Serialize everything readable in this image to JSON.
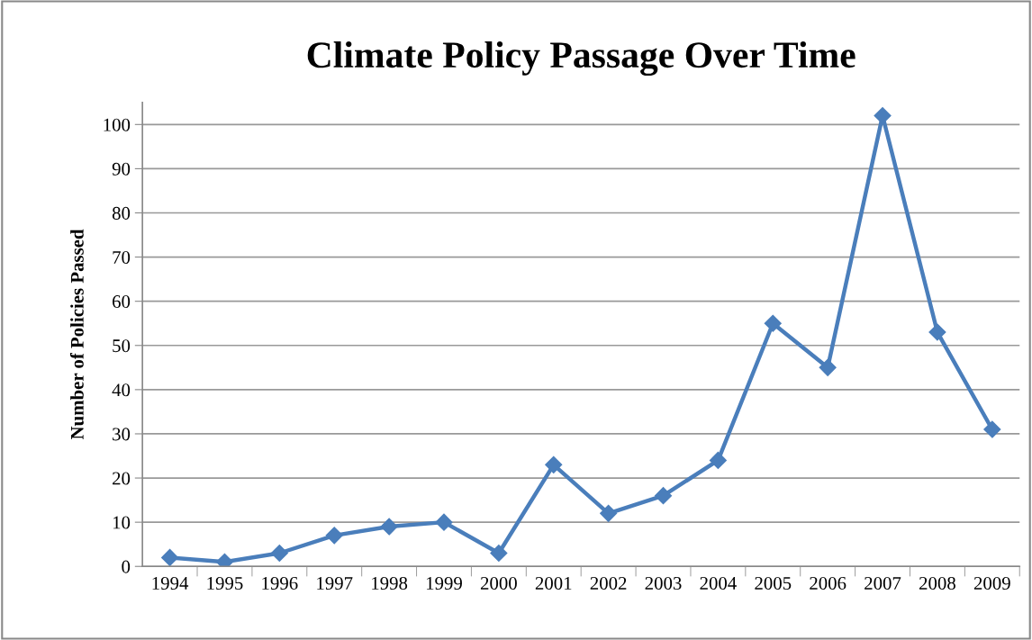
{
  "chart_data": {
    "type": "line",
    "title": "Climate Policy Passage Over Time",
    "ylabel": "Number of Policies Passed",
    "categories": [
      "1994",
      "1995",
      "1996",
      "1997",
      "1998",
      "1999",
      "2000",
      "2001",
      "2002",
      "2003",
      "2004",
      "2005",
      "2006",
      "2007",
      "2008",
      "2009"
    ],
    "series": [
      {
        "color": "#4a7ebb",
        "values": [
          2,
          1,
          3,
          7,
          9,
          10,
          3,
          23,
          12,
          16,
          24,
          55,
          45,
          102,
          53,
          31
        ]
      }
    ],
    "ylim": [
      0,
      105
    ],
    "yticks": [
      0,
      10,
      20,
      30,
      40,
      50,
      60,
      70,
      80,
      90,
      100
    ],
    "grid": "y",
    "legend": false,
    "marker": "diamond",
    "line_style": "solid"
  }
}
